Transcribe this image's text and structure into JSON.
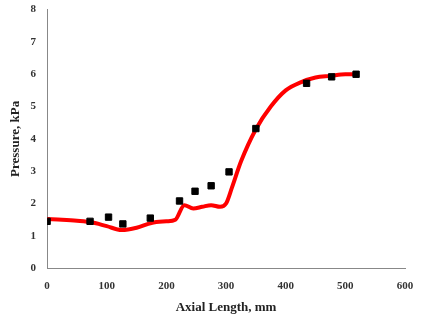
{
  "chart_data": {
    "type": "scatter",
    "x_label": "Axial Length, mm",
    "y_label": "Pressure, kPa",
    "xlim": [
      0,
      600
    ],
    "xticks": [
      0,
      100,
      200,
      300,
      400,
      500,
      600
    ],
    "ylim": [
      0,
      8
    ],
    "yticks": [
      0,
      1,
      2,
      3,
      4,
      5,
      6,
      7,
      8
    ],
    "grid": false,
    "series": [
      {
        "type": "line",
        "color": "#ff0000",
        "marker": "none",
        "line_style": "solid",
        "x": [
          0,
          25,
          50,
          75,
          100,
          125,
          150,
          175,
          200,
          215,
          230,
          245,
          260,
          275,
          290,
          300,
          310,
          325,
          350,
          375,
          400,
          425,
          450,
          475,
          500,
          520
        ],
        "values": [
          1.52,
          1.5,
          1.47,
          1.42,
          1.3,
          1.18,
          1.25,
          1.4,
          1.45,
          1.5,
          1.95,
          1.85,
          1.9,
          1.95,
          1.9,
          2.0,
          2.5,
          3.3,
          4.3,
          5.0,
          5.5,
          5.75,
          5.9,
          5.95,
          6.0,
          6.0
        ]
      },
      {
        "type": "scatter",
        "color": "#000000",
        "marker": "square",
        "x": [
          0,
          72,
          103,
          127,
          173,
          222,
          248,
          275,
          305,
          350,
          435,
          477,
          518
        ],
        "values": [
          1.45,
          1.45,
          1.58,
          1.37,
          1.55,
          2.08,
          2.38,
          2.55,
          2.98,
          4.32,
          5.72,
          5.92,
          6.0
        ]
      }
    ]
  }
}
